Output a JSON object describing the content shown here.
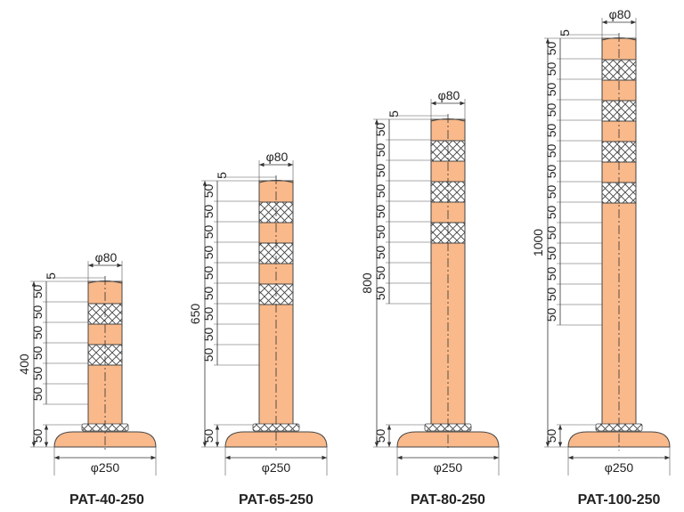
{
  "colors": {
    "post": "#f9b98a",
    "outline": "#444444",
    "band": "#ffffff"
  },
  "posts": [
    {
      "model": "PAT-40-250",
      "height": "400",
      "diameter_top": "φ80",
      "diameter_base": "φ250",
      "base_height": "50",
      "cap": "5",
      "band_dims": [
        "50",
        "50",
        "50",
        "50",
        "50",
        "50"
      ]
    },
    {
      "model": "PAT-65-250",
      "height": "650",
      "diameter_top": "φ80",
      "diameter_base": "φ250",
      "base_height": "50",
      "cap": "5",
      "band_dims": [
        "50",
        "50",
        "50",
        "50",
        "50",
        "50",
        "50",
        "50",
        "50"
      ]
    },
    {
      "model": "PAT-80-250",
      "height": "800",
      "diameter_top": "φ80",
      "diameter_base": "φ250",
      "base_height": "50",
      "cap": "5",
      "band_dims": [
        "50",
        "50",
        "50",
        "50",
        "50",
        "50",
        "50",
        "50",
        "50"
      ]
    },
    {
      "model": "PAT-100-250",
      "height": "1000",
      "diameter_top": "φ80",
      "diameter_base": "φ250",
      "base_height": "50",
      "cap": "5",
      "band_dims": [
        "50",
        "50",
        "50",
        "50",
        "50",
        "50",
        "50",
        "50",
        "50",
        "50",
        "50",
        "50",
        "50",
        "50"
      ]
    }
  ]
}
